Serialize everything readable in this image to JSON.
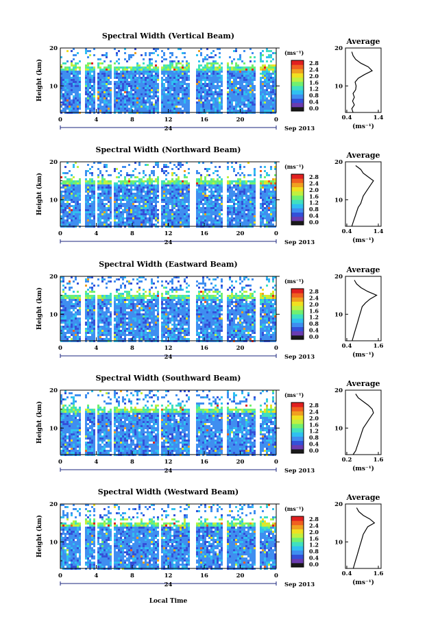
{
  "colors": {
    "colormap": [
      "#1a1a1a",
      "#6a3cb0",
      "#3450d8",
      "#3f8ef0",
      "#30c0f0",
      "#40e0c0",
      "#70f070",
      "#c0f040",
      "#f0e020",
      "#f0a020",
      "#f06020",
      "#e02020"
    ],
    "background": "#ffffff",
    "axis": "#000000"
  },
  "chart_data": [
    {
      "type": "heatmap",
      "title": "Spectral Width (Vertical Beam)",
      "ylabel": "Height (km)",
      "x_ticks": [
        "0",
        "4",
        "8",
        "12",
        "16",
        "20",
        "0"
      ],
      "xlim": [
        0,
        24
      ],
      "y_ticks": [
        "10",
        "20"
      ],
      "ylim": [
        3,
        20
      ],
      "date_marker": "24",
      "date_label": "Sep 2013",
      "colorbar": {
        "unit": "(ms⁻¹)",
        "ticks": [
          "0.0",
          "0.4",
          "0.8",
          "1.2",
          "1.6",
          "2.0",
          "2.4",
          "2.8"
        ]
      },
      "profile": {
        "title": "Average",
        "x_ticks": [
          "0.4",
          "1.4"
        ],
        "xlim": [
          0.2,
          1.6
        ],
        "y_ticks": [
          "10",
          "20"
        ],
        "xlabel": "(ms⁻¹)",
        "height_km": [
          3,
          4,
          5,
          6,
          7,
          8,
          9,
          10,
          11,
          12,
          13,
          14,
          15,
          16,
          17,
          18,
          19
        ],
        "width_ms": [
          0.5,
          0.45,
          0.55,
          0.48,
          0.55,
          0.5,
          0.6,
          0.62,
          0.58,
          0.7,
          0.95,
          1.25,
          1.1,
          0.8,
          0.6,
          0.5,
          0.45
        ]
      }
    },
    {
      "type": "heatmap",
      "title": "Spectral Width (Northward Beam)",
      "ylabel": "Height (km)",
      "x_ticks": [
        "0",
        "4",
        "8",
        "12",
        "16",
        "20",
        "0"
      ],
      "xlim": [
        0,
        24
      ],
      "y_ticks": [
        "10",
        "20"
      ],
      "ylim": [
        3,
        20
      ],
      "date_marker": "24",
      "date_label": "Sep 2013",
      "colorbar": {
        "unit": "(ms⁻¹)",
        "ticks": [
          "0.0",
          "0.4",
          "0.8",
          "1.2",
          "1.6",
          "2.0",
          "2.4",
          "2.8"
        ]
      },
      "profile": {
        "title": "Average",
        "x_ticks": [
          "0.4",
          "1.4"
        ],
        "xlim": [
          0.2,
          1.6
        ],
        "y_ticks": [
          "10",
          "20"
        ],
        "xlabel": "(ms⁻¹)",
        "height_km": [
          3,
          4,
          5,
          6,
          7,
          8,
          9,
          10,
          11,
          12,
          13,
          14,
          15,
          16,
          17,
          18,
          19
        ],
        "width_ms": [
          0.45,
          0.5,
          0.55,
          0.6,
          0.65,
          0.7,
          0.8,
          0.85,
          0.9,
          1.0,
          1.1,
          1.2,
          1.3,
          1.1,
          0.9,
          0.8,
          0.6
        ]
      }
    },
    {
      "type": "heatmap",
      "title": "Spectral Width (Eastward Beam)",
      "ylabel": "Height (km)",
      "x_ticks": [
        "0",
        "4",
        "8",
        "12",
        "16",
        "20",
        "0"
      ],
      "xlim": [
        0,
        24
      ],
      "y_ticks": [
        "10",
        "20"
      ],
      "ylim": [
        3,
        20
      ],
      "date_marker": "24",
      "date_label": "Sep 2013",
      "colorbar": {
        "unit": "(ms⁻¹)",
        "ticks": [
          "0.0",
          "0.4",
          "0.8",
          "1.2",
          "1.6",
          "2.0",
          "2.4",
          "2.8"
        ]
      },
      "profile": {
        "title": "Average",
        "x_ticks": [
          "0.4",
          "1.6"
        ],
        "xlim": [
          0.2,
          1.8
        ],
        "y_ticks": [
          "10",
          "20"
        ],
        "xlabel": "(ms⁻¹)",
        "height_km": [
          3,
          4,
          5,
          6,
          7,
          8,
          9,
          10,
          11,
          12,
          13,
          14,
          15,
          16,
          17,
          18,
          19
        ],
        "width_ms": [
          0.5,
          0.55,
          0.6,
          0.65,
          0.7,
          0.75,
          0.8,
          0.85,
          0.9,
          0.95,
          1.1,
          1.3,
          1.6,
          1.2,
          0.9,
          0.7,
          0.6
        ]
      }
    },
    {
      "type": "heatmap",
      "title": "Spectral Width (Southward Beam)",
      "ylabel": "Height (km)",
      "x_ticks": [
        "0",
        "4",
        "8",
        "12",
        "16",
        "20",
        "0"
      ],
      "xlim": [
        0,
        24
      ],
      "y_ticks": [
        "10",
        "20"
      ],
      "ylim": [
        3,
        20
      ],
      "date_marker": "24",
      "date_label": "Sep 2013",
      "colorbar": {
        "unit": "(ms⁻¹)",
        "ticks": [
          "0.0",
          "0.4",
          "0.8",
          "1.2",
          "1.6",
          "2.0",
          "2.4",
          "2.8"
        ]
      },
      "profile": {
        "title": "Average",
        "x_ticks": [
          "0.2",
          "1.6"
        ],
        "xlim": [
          0.2,
          1.6
        ],
        "y_ticks": [
          "10",
          "20"
        ],
        "xlabel": "(ms⁻¹)",
        "height_km": [
          3,
          4,
          5,
          6,
          7,
          8,
          9,
          10,
          11,
          12,
          13,
          14,
          15,
          16,
          17,
          18,
          19
        ],
        "width_ms": [
          0.5,
          0.6,
          0.65,
          0.7,
          0.75,
          0.8,
          0.85,
          0.9,
          1.0,
          1.1,
          1.2,
          1.3,
          1.25,
          1.1,
          0.9,
          0.7,
          0.6
        ]
      }
    },
    {
      "type": "heatmap",
      "title": "Spectral Width (Westward Beam)",
      "ylabel": "Height (km)",
      "x_ticks": [
        "0",
        "4",
        "8",
        "12",
        "16",
        "20",
        "0"
      ],
      "xlim": [
        0,
        24
      ],
      "y_ticks": [
        "10",
        "20"
      ],
      "ylim": [
        3,
        20
      ],
      "date_marker": "24",
      "date_label": "Sep 2013",
      "colorbar": {
        "unit": "(ms⁻¹)",
        "ticks": [
          "0.0",
          "0.4",
          "0.8",
          "1.2",
          "1.6",
          "2.0",
          "2.4",
          "2.8"
        ]
      },
      "profile": {
        "title": "Average",
        "x_ticks": [
          "0.4",
          "1.6"
        ],
        "xlim": [
          0.2,
          1.8
        ],
        "y_ticks": [
          "10",
          "20"
        ],
        "xlabel": "(ms⁻¹)",
        "height_km": [
          3,
          4,
          5,
          6,
          7,
          8,
          9,
          10,
          11,
          12,
          13,
          14,
          15,
          16,
          17,
          18,
          19
        ],
        "width_ms": [
          0.55,
          0.6,
          0.65,
          0.7,
          0.75,
          0.8,
          0.85,
          0.9,
          0.95,
          1.0,
          1.1,
          1.2,
          1.5,
          1.3,
          1.0,
          0.8,
          0.7
        ]
      }
    }
  ],
  "footer": {
    "xlabel": "Local Time"
  }
}
